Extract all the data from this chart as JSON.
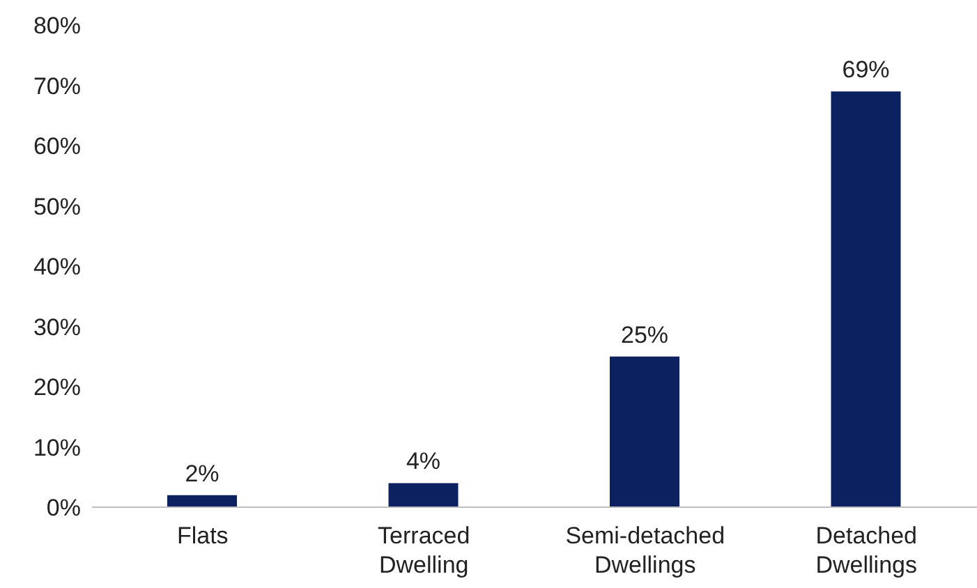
{
  "chart_data": {
    "type": "bar",
    "categories": [
      "Flats",
      "Terraced Dwelling",
      "Semi-detached Dwellings",
      "Detached Dwellings"
    ],
    "values": [
      2,
      4,
      25,
      69
    ],
    "value_labels": [
      "2%",
      "4%",
      "25%",
      "69%"
    ],
    "color": "#0c2260",
    "ylim": [
      0,
      80
    ],
    "yticks": [
      {
        "value": 0,
        "label": "0%"
      },
      {
        "value": 10,
        "label": "10%"
      },
      {
        "value": 20,
        "label": "20%"
      },
      {
        "value": 30,
        "label": "30%"
      },
      {
        "value": 40,
        "label": "40%"
      },
      {
        "value": 50,
        "label": "50%"
      },
      {
        "value": 60,
        "label": "60%"
      },
      {
        "value": 70,
        "label": "70%"
      },
      {
        "value": 80,
        "label": "80%"
      }
    ],
    "grid": false,
    "legend": false
  }
}
